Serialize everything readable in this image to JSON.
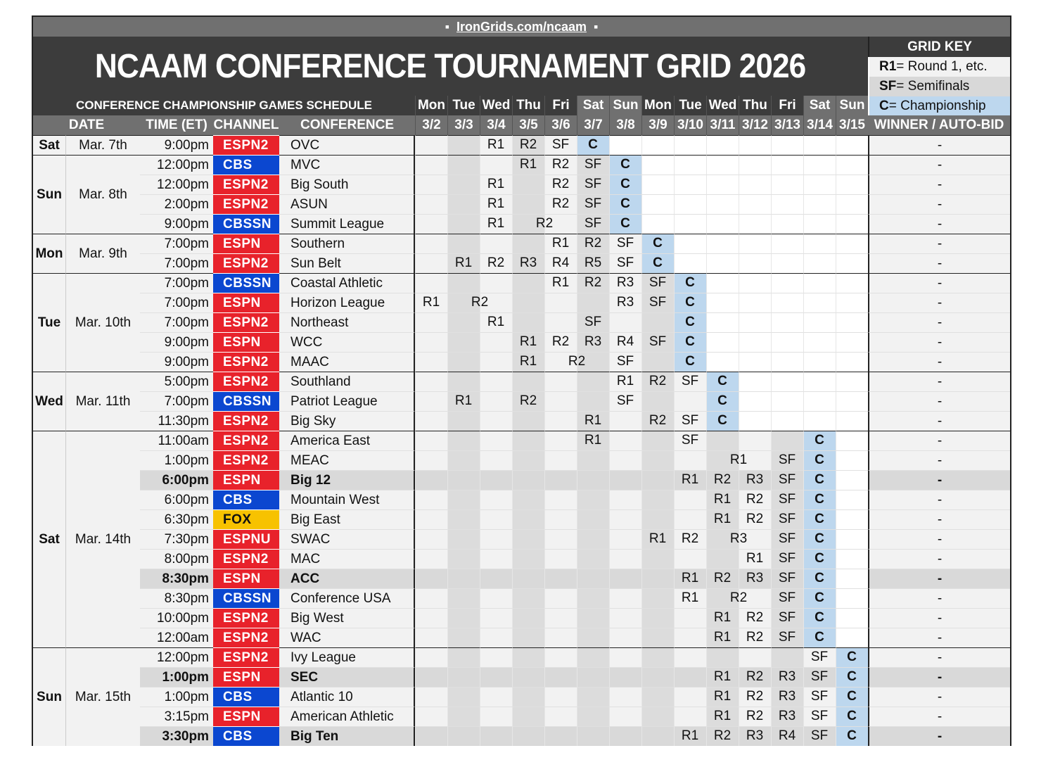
{
  "site_url": "IronGrids.com/ncaam",
  "title": "NCAAM CONFERENCE TOURNAMENT GRID 2026",
  "subtitle": "CONFERENCE CHAMPIONSHIP GAMES SCHEDULE",
  "grid_key": {
    "title": "GRID KEY",
    "items": [
      {
        "code": "R1",
        "text": " = Round 1, etc."
      },
      {
        "code": "SF",
        "text": " = Semifinals"
      },
      {
        "code": "C",
        "text": " = Championship"
      }
    ]
  },
  "columns": {
    "date": "DATE",
    "time": "TIME (ET)",
    "channel": "CHANNEL",
    "conference": "CONFERENCE",
    "winner": "WINNER / AUTO-BID"
  },
  "days": [
    {
      "dow": "Mon",
      "date": "3/2"
    },
    {
      "dow": "Tue",
      "date": "3/3"
    },
    {
      "dow": "Wed",
      "date": "3/4"
    },
    {
      "dow": "Thu",
      "date": "3/5"
    },
    {
      "dow": "Fri",
      "date": "3/6"
    },
    {
      "dow": "Sat",
      "date": "3/7"
    },
    {
      "dow": "Sun",
      "date": "3/8"
    },
    {
      "dow": "Mon",
      "date": "3/9"
    },
    {
      "dow": "Tue",
      "date": "3/10"
    },
    {
      "dow": "Wed",
      "date": "3/11"
    },
    {
      "dow": "Thu",
      "date": "3/12"
    },
    {
      "dow": "Fri",
      "date": "3/13"
    },
    {
      "dow": "Sat",
      "date": "3/14"
    },
    {
      "dow": "Sun",
      "date": "3/15"
    }
  ],
  "date_groups": [
    {
      "dow": "Sat",
      "date": "Mar. 7th",
      "rows": 1
    },
    {
      "dow": "Sun",
      "date": "Mar. 8th",
      "rows": 4
    },
    {
      "dow": "Mon",
      "date": "Mar. 9th",
      "rows": 2
    },
    {
      "dow": "Tue",
      "date": "Mar. 10th",
      "rows": 5
    },
    {
      "dow": "Wed",
      "date": "Mar. 11th",
      "rows": 3
    },
    {
      "dow": "Sat",
      "date": "Mar. 14th",
      "rows": 11
    },
    {
      "dow": "Sun",
      "date": "Mar. 15th",
      "rows": 5
    }
  ],
  "channel_colors": {
    "ESPN": "#e8222b",
    "ESPN2": "#e8222b",
    "ESPNU": "#e8222b",
    "CBS": "#0b47d0",
    "CBSSN": "#0b47d0",
    "FOX": "#f7c200"
  },
  "games": [
    {
      "time": "9:00pm",
      "channel": "ESPN2",
      "conference": "OVC",
      "winner": "-",
      "bold": false,
      "rounds": [
        [
          "",
          "",
          "R1",
          "R2",
          "SF",
          "C"
        ]
      ]
    },
    {
      "time": "12:00pm",
      "channel": "CBS",
      "conference": "MVC",
      "winner": "-",
      "bold": false,
      "rounds": [
        [
          "",
          "",
          "",
          "R1",
          "R2",
          "SF",
          "C"
        ]
      ]
    },
    {
      "time": "12:00pm",
      "channel": "ESPN2",
      "conference": "Big South",
      "winner": "-",
      "bold": false,
      "rounds": [
        [
          "",
          "",
          "R1",
          "",
          "R2",
          "SF",
          "C"
        ]
      ]
    },
    {
      "time": "2:00pm",
      "channel": "ESPN2",
      "conference": "ASUN",
      "winner": "-",
      "bold": false,
      "rounds": [
        [
          "",
          "",
          "R1",
          "",
          "R2",
          "SF",
          "C"
        ]
      ]
    },
    {
      "time": "9:00pm",
      "channel": "CBSSN",
      "conference": "Summit League",
      "winner": "-",
      "bold": false,
      "rounds": [
        [
          "",
          "",
          "R1",
          [
            "R2",
            2
          ],
          "SF",
          "C"
        ]
      ]
    },
    {
      "time": "7:00pm",
      "channel": "ESPN",
      "conference": "Southern",
      "winner": "-",
      "bold": false,
      "rounds": [
        [
          "",
          "",
          "",
          "",
          "R1",
          "R2",
          "SF",
          "C"
        ]
      ]
    },
    {
      "time": "7:00pm",
      "channel": "ESPN2",
      "conference": "Sun Belt",
      "winner": "-",
      "bold": false,
      "rounds": [
        [
          "",
          "R1",
          "R2",
          "R3",
          "R4",
          "R5",
          "SF",
          "C"
        ]
      ]
    },
    {
      "time": "7:00pm",
      "channel": "CBSSN",
      "conference": "Coastal Athletic",
      "winner": "-",
      "bold": false,
      "rounds": [
        [
          "",
          "",
          "",
          "",
          "R1",
          "R2",
          "R3",
          "SF",
          "C"
        ]
      ]
    },
    {
      "time": "7:00pm",
      "channel": "ESPN",
      "conference": "Horizon League",
      "winner": "-",
      "bold": false,
      "rounds": [
        [
          "R1",
          [
            "R2",
            2
          ],
          "",
          "",
          "",
          "R3",
          "SF",
          "C"
        ]
      ]
    },
    {
      "time": "7:00pm",
      "channel": "ESPN2",
      "conference": "Northeast",
      "winner": "-",
      "bold": false,
      "rounds": [
        [
          "",
          "",
          "R1",
          "",
          "",
          "SF",
          "",
          "",
          "C"
        ]
      ]
    },
    {
      "time": "9:00pm",
      "channel": "ESPN",
      "conference": "WCC",
      "winner": "-",
      "bold": false,
      "rounds": [
        [
          "",
          "",
          "",
          "R1",
          "R2",
          "R3",
          "R4",
          "SF",
          "C"
        ]
      ]
    },
    {
      "time": "9:00pm",
      "channel": "ESPN2",
      "conference": "MAAC",
      "winner": "-",
      "bold": false,
      "rounds": [
        [
          "",
          "",
          "",
          "R1",
          [
            "R2",
            2
          ],
          "SF",
          "",
          "C"
        ]
      ]
    },
    {
      "time": "5:00pm",
      "channel": "ESPN2",
      "conference": "Southland",
      "winner": "-",
      "bold": false,
      "rounds": [
        [
          "",
          "",
          "",
          "",
          "",
          "",
          "R1",
          "R2",
          "SF",
          "C"
        ]
      ]
    },
    {
      "time": "7:00pm",
      "channel": "CBSSN",
      "conference": "Patriot League",
      "winner": "-",
      "bold": false,
      "rounds": [
        [
          "",
          "R1",
          "",
          "R2",
          "",
          "",
          "SF",
          "",
          "",
          "C"
        ]
      ]
    },
    {
      "time": "11:30pm",
      "channel": "ESPN2",
      "conference": "Big Sky",
      "winner": "-",
      "bold": false,
      "rounds": [
        [
          "",
          "",
          "",
          "",
          "",
          "R1",
          "",
          "R2",
          "SF",
          "C"
        ]
      ]
    },
    {
      "time": "11:00am",
      "channel": "ESPN2",
      "conference": "America East",
      "winner": "-",
      "bold": false,
      "rounds": [
        [
          "",
          "",
          "",
          "",
          "",
          "R1",
          "",
          "",
          "SF",
          "",
          "",
          "",
          "C"
        ]
      ]
    },
    {
      "time": "1:00pm",
      "channel": "ESPN2",
      "conference": "MEAC",
      "winner": "-",
      "bold": false,
      "rounds": [
        [
          "",
          "",
          "",
          "",
          "",
          "",
          "",
          "",
          "",
          [
            "R1",
            2
          ],
          "SF",
          "C"
        ]
      ]
    },
    {
      "time": "6:00pm",
      "channel": "ESPN",
      "conference": "Big 12",
      "winner": "-",
      "bold": true,
      "rounds": [
        [
          "",
          "",
          "",
          "",
          "",
          "",
          "",
          "",
          "R1",
          "R2",
          "R3",
          "SF",
          "C"
        ]
      ]
    },
    {
      "time": "6:00pm",
      "channel": "CBS",
      "conference": "Mountain West",
      "winner": "-",
      "bold": false,
      "rounds": [
        [
          "",
          "",
          "",
          "",
          "",
          "",
          "",
          "",
          "",
          "R1",
          "R2",
          "SF",
          "C"
        ]
      ]
    },
    {
      "time": "6:30pm",
      "channel": "FOX",
      "conference": "Big East",
      "winner": "-",
      "bold": false,
      "rounds": [
        [
          "",
          "",
          "",
          "",
          "",
          "",
          "",
          "",
          "",
          "R1",
          "R2",
          "SF",
          "C"
        ]
      ]
    },
    {
      "time": "7:30pm",
      "channel": "ESPNU",
      "conference": "SWAC",
      "winner": "-",
      "bold": false,
      "rounds": [
        [
          "",
          "",
          "",
          "",
          "",
          "",
          "",
          "R1",
          "R2",
          [
            "R3",
            2
          ],
          "SF",
          "C"
        ]
      ]
    },
    {
      "time": "8:00pm",
      "channel": "ESPN2",
      "conference": "MAC",
      "winner": "-",
      "bold": false,
      "rounds": [
        [
          "",
          "",
          "",
          "",
          "",
          "",
          "",
          "",
          "",
          "",
          "R1",
          "SF",
          "C"
        ]
      ]
    },
    {
      "time": "8:30pm",
      "channel": "ESPN",
      "conference": "ACC",
      "winner": "-",
      "bold": true,
      "rounds": [
        [
          "",
          "",
          "",
          "",
          "",
          "",
          "",
          "",
          "R1",
          "R2",
          "R3",
          "SF",
          "C"
        ]
      ]
    },
    {
      "time": "8:30pm",
      "channel": "CBSSN",
      "conference": "Conference USA",
      "winner": "-",
      "bold": false,
      "rounds": [
        [
          "",
          "",
          "",
          "",
          "",
          "",
          "",
          "",
          "R1",
          [
            "R2",
            2
          ],
          "SF",
          "C"
        ]
      ]
    },
    {
      "time": "10:00pm",
      "channel": "ESPN2",
      "conference": "Big West",
      "winner": "-",
      "bold": false,
      "rounds": [
        [
          "",
          "",
          "",
          "",
          "",
          "",
          "",
          "",
          "",
          "R1",
          "R2",
          "SF",
          "C"
        ]
      ]
    },
    {
      "time": "12:00am",
      "channel": "ESPN2",
      "conference": "WAC",
      "winner": "-",
      "bold": false,
      "rounds": [
        [
          "",
          "",
          "",
          "",
          "",
          "",
          "",
          "",
          "",
          "R1",
          "R2",
          "SF",
          "C"
        ]
      ]
    },
    {
      "time": "12:00pm",
      "channel": "ESPN2",
      "conference": "Ivy League",
      "winner": "-",
      "bold": false,
      "rounds": [
        [
          "",
          "",
          "",
          "",
          "",
          "",
          "",
          "",
          "",
          "",
          "",
          "",
          "SF",
          "C"
        ]
      ]
    },
    {
      "time": "1:00pm",
      "channel": "ESPN",
      "conference": "SEC",
      "winner": "-",
      "bold": true,
      "rounds": [
        [
          "",
          "",
          "",
          "",
          "",
          "",
          "",
          "",
          "",
          "R1",
          "R2",
          "R3",
          "SF",
          "C"
        ]
      ]
    },
    {
      "time": "1:00pm",
      "channel": "CBS",
      "conference": "Atlantic 10",
      "winner": "-",
      "bold": false,
      "rounds": [
        [
          "",
          "",
          "",
          "",
          "",
          "",
          "",
          "",
          "",
          "R1",
          "R2",
          "R3",
          "SF",
          "C"
        ]
      ]
    },
    {
      "time": "3:15pm",
      "channel": "ESPN",
      "conference": "American Athletic",
      "winner": "-",
      "bold": false,
      "rounds": [
        [
          "",
          "",
          "",
          "",
          "",
          "",
          "",
          "",
          "",
          "R1",
          "R2",
          "R3",
          "SF",
          "C"
        ]
      ]
    },
    {
      "time": "3:30pm",
      "channel": "CBS",
      "conference": "Big Ten",
      "winner": "-",
      "bold": true,
      "rounds": [
        [
          "",
          "",
          "",
          "",
          "",
          "",
          "",
          "",
          "R1",
          "R2",
          "R3",
          "R4",
          "SF",
          "C"
        ]
      ]
    }
  ]
}
